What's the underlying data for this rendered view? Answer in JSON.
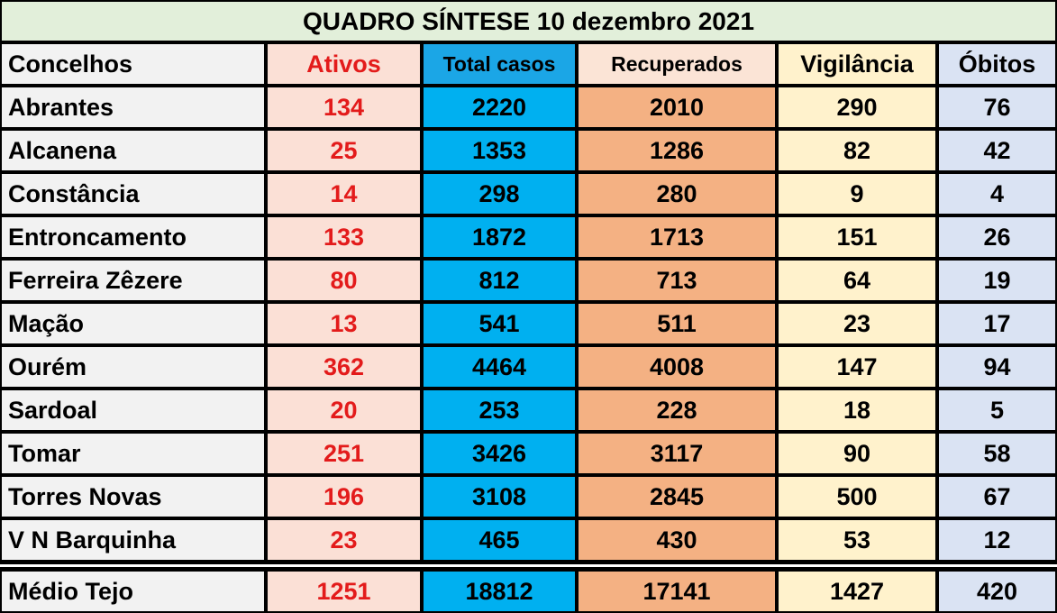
{
  "title": "QUADRO SÍNTESE 10 dezembro 2021",
  "table": {
    "header": [
      "Concelhos",
      "Ativos",
      "Total casos",
      "Recuperados",
      "Vigilância",
      "Óbitos"
    ],
    "rows": [
      [
        "Abrantes",
        134,
        2220,
        2010,
        290,
        76
      ],
      [
        "Alcanena",
        25,
        1353,
        1286,
        82,
        42
      ],
      [
        "Constância",
        14,
        298,
        280,
        9,
        4
      ],
      [
        "Entroncamento",
        133,
        1872,
        1713,
        151,
        26
      ],
      [
        "Ferreira Zêzere",
        80,
        812,
        713,
        64,
        19
      ],
      [
        "Mação",
        13,
        541,
        511,
        23,
        17
      ],
      [
        "Ourém",
        362,
        4464,
        4008,
        147,
        94
      ],
      [
        "Sardoal",
        20,
        253,
        228,
        18,
        5
      ],
      [
        "Tomar",
        251,
        3426,
        3117,
        90,
        58
      ],
      [
        "Torres Novas",
        196,
        3108,
        2845,
        500,
        67
      ],
      [
        "V N Barquinha",
        23,
        465,
        430,
        53,
        12
      ]
    ],
    "total": [
      "Médio Tejo",
      1251,
      18812,
      17141,
      1427,
      420
    ]
  }
}
